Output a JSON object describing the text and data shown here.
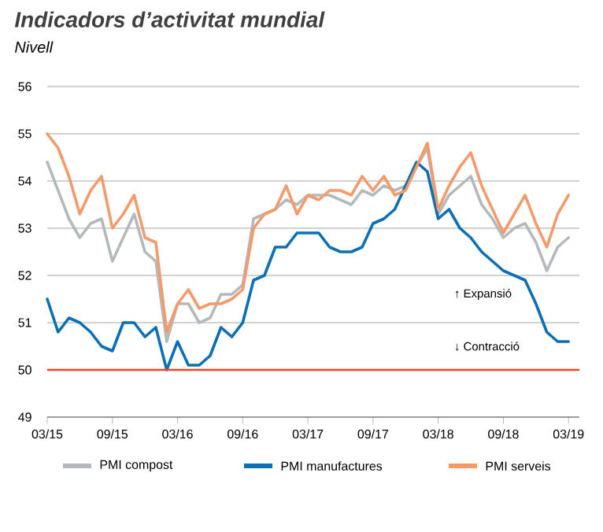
{
  "chart_data": {
    "type": "line",
    "title": "Indicadors d’activitat mundial",
    "subtitle": "Nivell",
    "x": [
      "2015-03",
      "2015-04",
      "2015-05",
      "2015-06",
      "2015-07",
      "2015-08",
      "2015-09",
      "2015-10",
      "2015-11",
      "2015-12",
      "2016-01",
      "2016-02",
      "2016-03",
      "2016-04",
      "2016-05",
      "2016-06",
      "2016-07",
      "2016-08",
      "2016-09",
      "2016-10",
      "2016-11",
      "2016-12",
      "2017-01",
      "2017-02",
      "2017-03",
      "2017-04",
      "2017-05",
      "2017-06",
      "2017-07",
      "2017-08",
      "2017-09",
      "2017-10",
      "2017-11",
      "2017-12",
      "2018-01",
      "2018-02",
      "2018-03",
      "2018-04",
      "2018-05",
      "2018-06",
      "2018-07",
      "2018-08",
      "2018-09",
      "2018-10",
      "2018-11",
      "2018-12",
      "2019-01",
      "2019-02",
      "2019-03"
    ],
    "series": [
      {
        "name": "PMI compost",
        "color": "#b4b9bb",
        "values": [
          54.4,
          53.8,
          53.2,
          52.8,
          53.1,
          53.2,
          52.3,
          52.8,
          53.3,
          52.5,
          52.3,
          50.6,
          51.4,
          51.4,
          51.0,
          51.1,
          51.6,
          51.6,
          51.8,
          53.2,
          53.3,
          53.4,
          53.6,
          53.5,
          53.7,
          53.7,
          53.7,
          53.6,
          53.5,
          53.8,
          53.7,
          53.9,
          53.8,
          53.9,
          54.3,
          54.7,
          53.3,
          53.7,
          53.9,
          54.1,
          53.5,
          53.2,
          52.8,
          53.0,
          53.1,
          52.7,
          52.1,
          52.6,
          52.8
        ]
      },
      {
        "name": "PMI manufactures",
        "color": "#0a6fb5",
        "values": [
          51.5,
          50.8,
          51.1,
          51.0,
          50.8,
          50.5,
          50.4,
          51.0,
          51.0,
          50.7,
          50.9,
          50.0,
          50.6,
          50.1,
          50.1,
          50.3,
          50.9,
          50.7,
          51.0,
          51.9,
          52.0,
          52.6,
          52.6,
          52.9,
          52.9,
          52.9,
          52.6,
          52.5,
          52.5,
          52.6,
          53.1,
          53.2,
          53.4,
          53.9,
          54.4,
          54.2,
          53.2,
          53.4,
          53.0,
          52.8,
          52.5,
          52.3,
          52.1,
          52.0,
          51.9,
          51.4,
          50.8,
          50.6,
          50.6
        ]
      },
      {
        "name": "PMI serveis",
        "color": "#f59a6b",
        "values": [
          55.0,
          54.7,
          54.1,
          53.3,
          53.8,
          54.1,
          53.0,
          53.3,
          53.7,
          52.8,
          52.7,
          50.8,
          51.4,
          51.7,
          51.3,
          51.4,
          51.4,
          51.5,
          51.7,
          53.0,
          53.3,
          53.4,
          53.9,
          53.3,
          53.7,
          53.6,
          53.8,
          53.8,
          53.7,
          54.1,
          53.8,
          54.1,
          53.7,
          53.8,
          54.3,
          54.8,
          53.4,
          53.9,
          54.3,
          54.6,
          53.9,
          53.4,
          52.9,
          53.3,
          53.7,
          53.1,
          52.6,
          53.3,
          53.7
        ]
      }
    ],
    "xlim": [
      "2015-03",
      "2019-04"
    ],
    "ylim": [
      49,
      56
    ],
    "xticks": [
      {
        "value": "2015-03",
        "label": "03/15"
      },
      {
        "value": "2015-09",
        "label": "09/15"
      },
      {
        "value": "2016-03",
        "label": "03/16"
      },
      {
        "value": "2016-09",
        "label": "09/16"
      },
      {
        "value": "2017-03",
        "label": "03/17"
      },
      {
        "value": "2017-09",
        "label": "09/17"
      },
      {
        "value": "2018-03",
        "label": "03/18"
      },
      {
        "value": "2018-09",
        "label": "09/18"
      },
      {
        "value": "2019-03",
        "label": "03/19"
      }
    ],
    "yticks": [
      49,
      50,
      51,
      52,
      53,
      54,
      55,
      56
    ],
    "ref_lines": [
      {
        "axis": "y",
        "value": 50,
        "color": "#e8452c"
      }
    ],
    "annotations": [
      "↑ Expansió",
      "↓ Contracció"
    ],
    "grid": "y",
    "legend": "bottom",
    "line_style": "solid",
    "marker": "none"
  }
}
